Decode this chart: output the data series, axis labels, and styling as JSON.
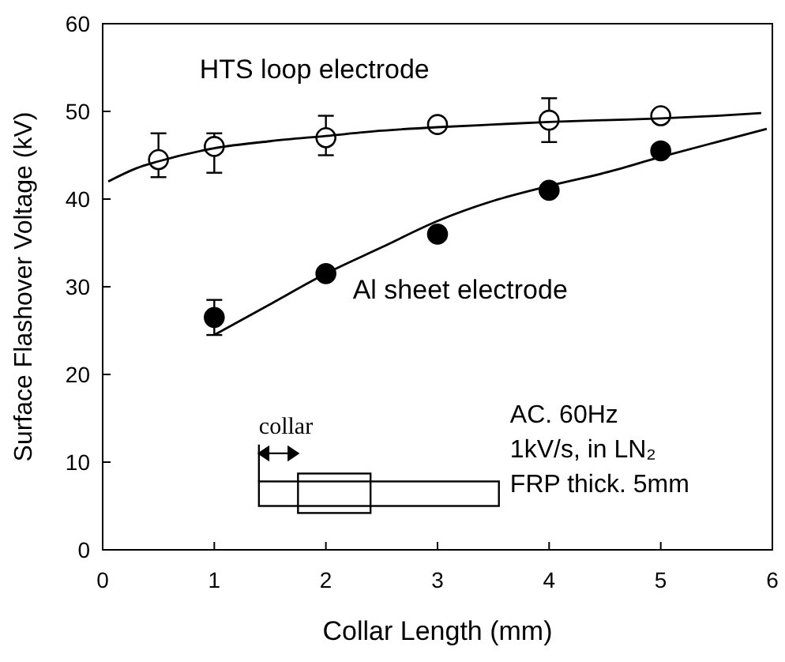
{
  "chart_data": {
    "type": "scatter",
    "xlabel": "Collar Length (mm)",
    "ylabel": "Surface Flashover Voltage (kV)",
    "xlim": [
      0,
      6
    ],
    "ylim": [
      0,
      60
    ],
    "xticks": [
      0,
      1,
      2,
      3,
      4,
      5,
      6
    ],
    "yticks": [
      0,
      10,
      20,
      30,
      40,
      50,
      60
    ],
    "grid": false,
    "series": [
      {
        "name": "HTS loop electrode",
        "marker": "circle",
        "color": "#ffffff",
        "x": [
          0.5,
          1,
          2,
          3,
          4,
          5
        ],
        "values": [
          44.5,
          46,
          47,
          48.5,
          49,
          49.5
        ],
        "errors": [
          [
            42.5,
            47.5
          ],
          [
            43,
            47.5
          ],
          [
            45,
            49.5
          ],
          null,
          [
            46.5,
            51.5
          ],
          null
        ]
      },
      {
        "name": "Al sheet electrode",
        "marker": "circle",
        "color": "#000000",
        "x": [
          1,
          2,
          3,
          4,
          5
        ],
        "values": [
          26.5,
          31.5,
          36,
          41,
          45.5
        ],
        "errors": [
          [
            24.5,
            28.5
          ],
          null,
          null,
          null,
          null
        ]
      },
      {
        "type": "line",
        "color": "#000000",
        "x": [
          0.05,
          0.3,
          0.5,
          1,
          1.5,
          2,
          2.5,
          3,
          3.5,
          4,
          4.5,
          5,
          5.5,
          5.9
        ],
        "values": [
          42,
          43.5,
          44.3,
          45.8,
          46.6,
          47.2,
          47.8,
          48.2,
          48.5,
          48.8,
          49,
          49.2,
          49.5,
          49.8
        ]
      },
      {
        "type": "line",
        "color": "#000000",
        "x": [
          1,
          1.5,
          2,
          2.5,
          3,
          3.5,
          4,
          4.5,
          5,
          5.5,
          5.95
        ],
        "values": [
          24.5,
          28,
          31.5,
          34.5,
          37.5,
          39.8,
          41.5,
          43,
          44.8,
          46.5,
          48
        ]
      }
    ],
    "annotations": [
      "collar",
      "AC. 60Hz",
      "1kV/s, in LN₂",
      "FRP thick. 5mm"
    ]
  }
}
